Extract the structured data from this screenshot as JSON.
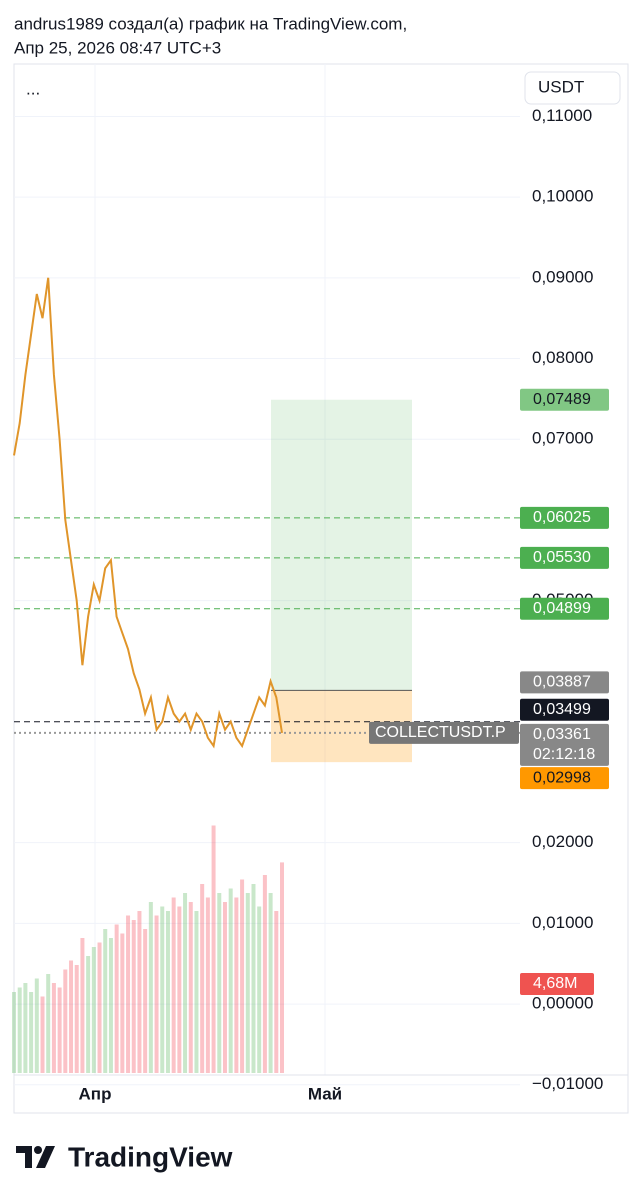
{
  "header": {
    "line1": "andrus1989 создал(а) график на TradingView.com,",
    "line2": "Апр 25, 2026 08:47 UTC+3"
  },
  "menu": "...",
  "currency": "USDT",
  "brand": "TradingView",
  "chart_data": {
    "type": "line",
    "symbol": "COLLECTUSDT.P",
    "color": "#e0952a",
    "x_labels": [
      "Апр",
      "Май"
    ],
    "ylim": [
      -0.0135,
      0.1165
    ],
    "yticks": [
      {
        "value": 0.11,
        "label": "0,11000"
      },
      {
        "value": 0.1,
        "label": "0,10000"
      },
      {
        "value": 0.09,
        "label": "0,09000"
      },
      {
        "value": 0.08,
        "label": "0,08000"
      },
      {
        "value": 0.07,
        "label": "0,07000"
      },
      {
        "value": 0.05,
        "label": "0,05000"
      },
      {
        "value": 0.02,
        "label": "0,02000"
      },
      {
        "value": 0.01,
        "label": "0,01000"
      },
      {
        "value": 0,
        "label": "0,00000"
      },
      {
        "value": -0.01,
        "label": "−0,01000"
      }
    ],
    "values": [
      0.068,
      0.072,
      0.078,
      0.083,
      0.088,
      0.085,
      0.09,
      0.078,
      0.07,
      0.06,
      0.055,
      0.05,
      0.042,
      0.048,
      0.052,
      0.05,
      0.054,
      0.055,
      0.048,
      0.046,
      0.044,
      0.041,
      0.039,
      0.036,
      0.038,
      0.034,
      0.035,
      0.038,
      0.036,
      0.035,
      0.036,
      0.034,
      0.036,
      0.035,
      0.033,
      0.032,
      0.036,
      0.034,
      0.035,
      0.033,
      0.032,
      0.034,
      0.036,
      0.038,
      0.037,
      0.04,
      0.038,
      0.0336
    ],
    "volume": [
      1.8,
      1.9,
      2.0,
      1.8,
      2.1,
      1.7,
      2.2,
      2.0,
      1.9,
      2.3,
      2.5,
      2.4,
      3.0,
      2.6,
      2.8,
      2.9,
      3.2,
      3.0,
      3.3,
      3.1,
      3.5,
      3.4,
      3.6,
      3.2,
      3.8,
      3.5,
      3.7,
      3.6,
      3.9,
      3.7,
      4.0,
      3.8,
      3.6,
      4.2,
      3.9,
      5.5,
      4.0,
      3.8,
      4.1,
      3.9,
      4.3,
      4.0,
      4.2,
      3.7,
      4.4,
      4.0,
      3.6,
      4.68
    ],
    "last_volume": {
      "value": 4.68,
      "label": "4,68M"
    },
    "position": {
      "target": {
        "value": 0.07489,
        "label": "0,07489"
      },
      "entry": {
        "value": 0.03887,
        "label": "0,03887"
      },
      "stop": {
        "value": 0.02998,
        "label": "0,02998"
      }
    },
    "take_profits": [
      {
        "value": 0.06025,
        "label": "0,06025"
      },
      {
        "value": 0.0553,
        "label": "0,05530"
      },
      {
        "value": 0.04899,
        "label": "0,04899"
      }
    ],
    "marker_line": {
      "value": 0.03499,
      "label": "0,03499"
    },
    "last_price": {
      "value": 0.03361,
      "label": "0,03361"
    },
    "countdown": "02:12:18"
  }
}
